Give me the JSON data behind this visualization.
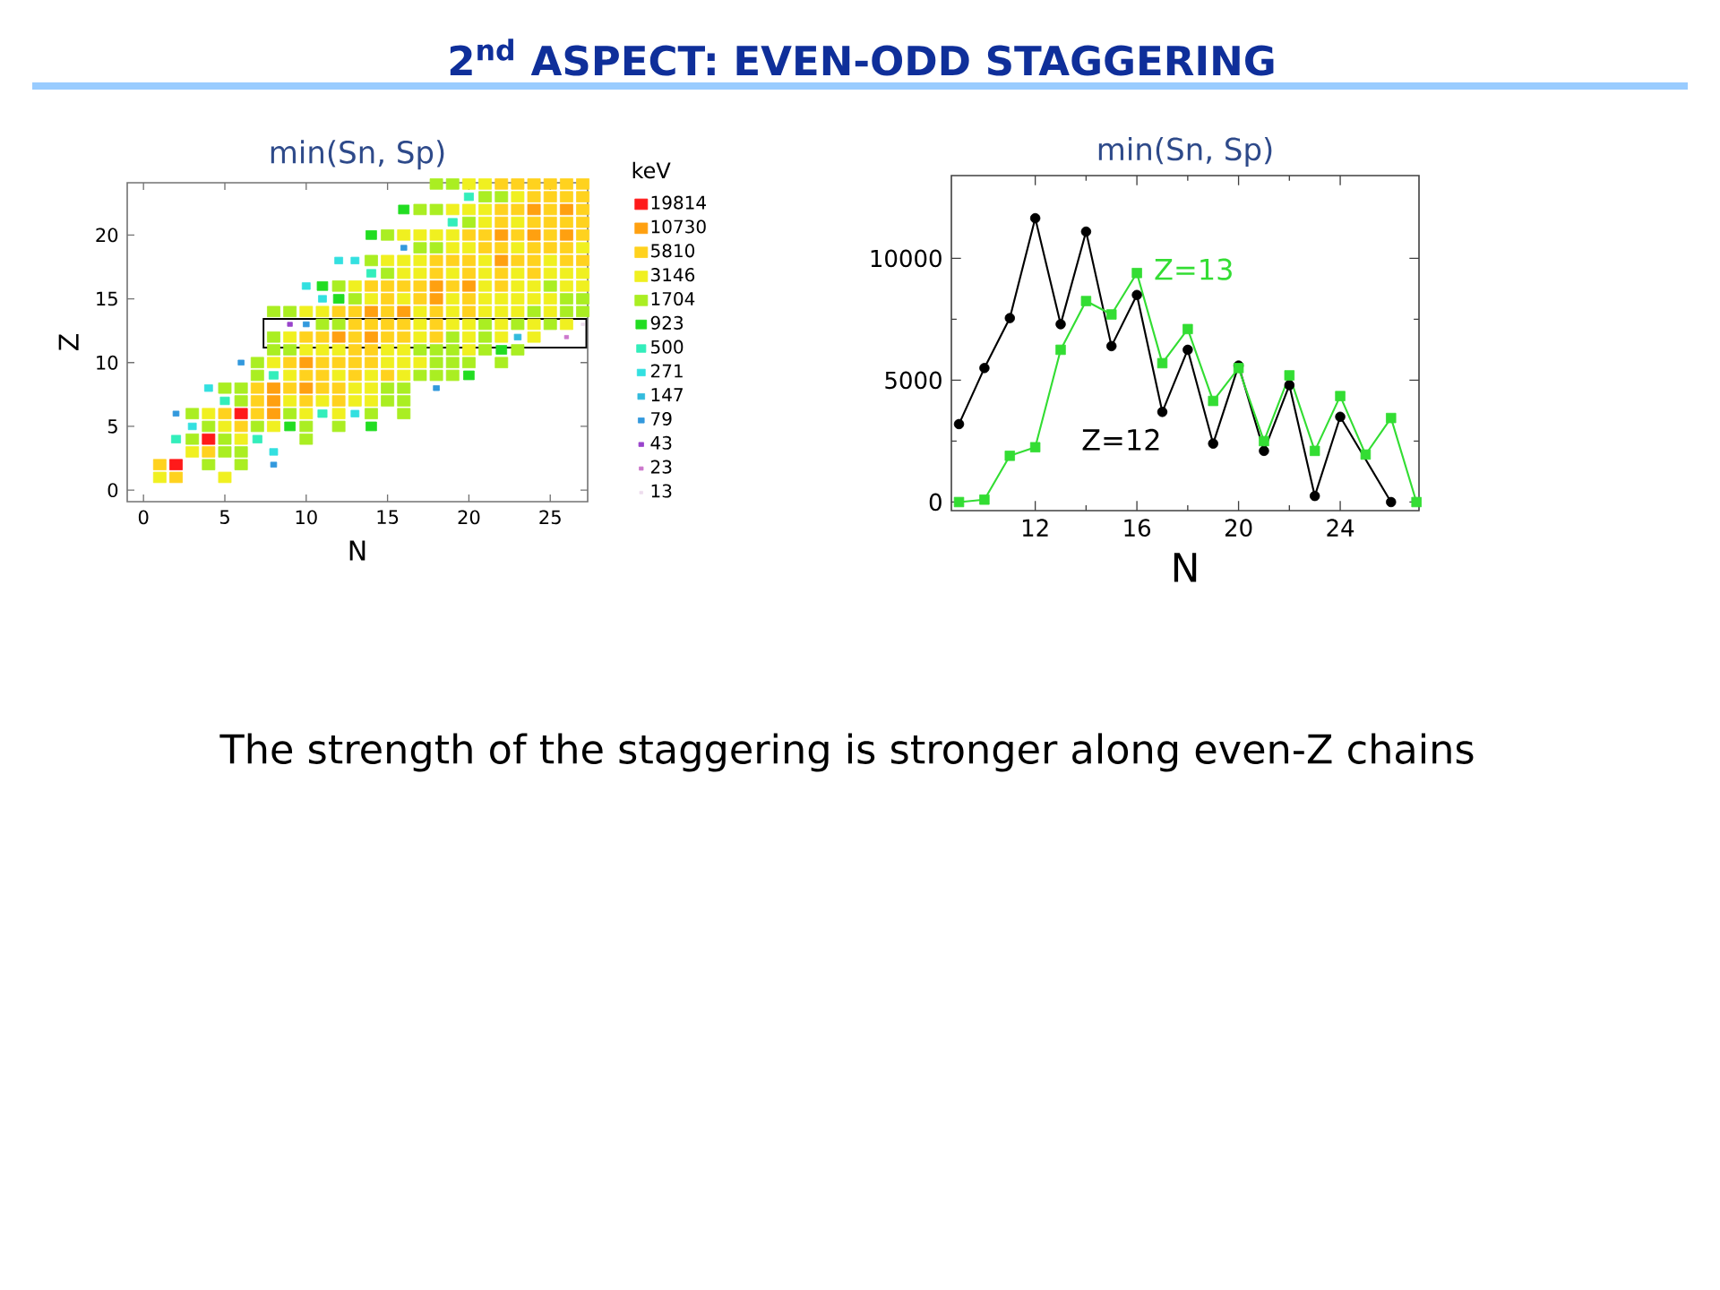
{
  "chart_data": [
    {
      "type": "other",
      "title": "2$^{nd}$ ASPECT: EVEN-ODD STAGGERING",
      "annotations": [
        "The strength of the staggering is stronger along even-Z chains"
      ]
    },
    {
      "type": "scatter",
      "title": "min(Sn, Sp)",
      "xlabel": "N",
      "ylabel": "Z",
      "legend_title": "keV",
      "legend": "right",
      "marker": "square",
      "xlim": [
        -1,
        27.3
      ],
      "xticks": [
        0,
        5,
        10,
        15,
        20,
        25
      ],
      "ylim": [
        -0.9,
        24.1
      ],
      "yticks": [
        0,
        5,
        10,
        15,
        20
      ],
      "series": [
        {
          "name": "19814",
          "color": "#ff1a1a",
          "x": [
            6,
            4,
            2
          ],
          "values": [
            6,
            4,
            2
          ]
        },
        {
          "name": "10730",
          "color": "#ffa010",
          "x": [
            24,
            26,
            22,
            24,
            26,
            22,
            18,
            20,
            18,
            14,
            16,
            12,
            14,
            10,
            8,
            10,
            8,
            8
          ],
          "values": [
            22,
            22,
            20,
            20,
            20,
            18,
            16,
            16,
            15,
            14,
            14,
            12,
            12,
            10,
            8,
            8,
            7,
            6
          ]
        },
        {
          "name": "5810",
          "color": "#ffd21e",
          "x": [
            22,
            23,
            24,
            25,
            26,
            27,
            24,
            25,
            26,
            27,
            22,
            23,
            25,
            27,
            22,
            24,
            25,
            26,
            27,
            20,
            21,
            23,
            25,
            27,
            21,
            22,
            24,
            25,
            26,
            18,
            19,
            20,
            23,
            24,
            26,
            27,
            18,
            20,
            22,
            24,
            14,
            15,
            16,
            17,
            19,
            22,
            15,
            17,
            20,
            12,
            13,
            15,
            18,
            20,
            13,
            14,
            15,
            16,
            18,
            10,
            11,
            13,
            15,
            16,
            18,
            13,
            14,
            9,
            11,
            12,
            13,
            14,
            10,
            11,
            13,
            15,
            7,
            9,
            11,
            12,
            7,
            10,
            12,
            5,
            7,
            6,
            4,
            1,
            2
          ],
          "values": [
            24,
            24,
            24,
            24,
            24,
            24,
            23,
            23,
            23,
            23,
            22,
            22,
            22,
            22,
            21,
            21,
            21,
            21,
            21,
            20,
            20,
            20,
            20,
            20,
            19,
            19,
            19,
            19,
            19,
            18,
            18,
            18,
            18,
            18,
            18,
            18,
            17,
            17,
            17,
            17,
            16,
            16,
            16,
            16,
            16,
            16,
            15,
            15,
            15,
            14,
            14,
            14,
            14,
            14,
            13,
            13,
            13,
            13,
            13,
            12,
            12,
            12,
            12,
            12,
            12,
            11,
            11,
            10,
            10,
            10,
            10,
            10,
            9,
            9,
            9,
            9,
            8,
            8,
            8,
            8,
            7,
            7,
            7,
            6,
            6,
            5,
            3,
            2,
            1
          ]
        },
        {
          "name": "3146",
          "color": "#f0f020",
          "x": [
            20,
            21,
            23,
            19,
            20,
            21,
            21,
            23,
            16,
            17,
            18,
            19,
            19,
            20,
            23,
            27,
            15,
            16,
            17,
            21,
            25,
            16,
            17,
            19,
            21,
            23,
            25,
            26,
            27,
            13,
            21,
            23,
            24,
            26,
            27,
            14,
            16,
            19,
            21,
            22,
            23,
            24,
            25,
            10,
            11,
            17,
            19,
            21,
            22,
            23,
            25,
            17,
            19,
            20,
            22,
            24,
            26,
            9,
            17,
            20,
            22,
            24,
            10,
            11,
            12,
            15,
            16,
            20,
            8,
            15,
            16,
            17,
            9,
            12,
            14,
            16,
            13,
            14,
            9,
            11,
            13,
            14,
            4,
            10,
            12,
            5,
            8,
            6,
            3,
            1,
            5
          ],
          "values": [
            24,
            24,
            23,
            22,
            22,
            22,
            21,
            21,
            20,
            20,
            20,
            20,
            19,
            19,
            19,
            19,
            18,
            18,
            18,
            18,
            18,
            17,
            17,
            17,
            17,
            17,
            17,
            17,
            17,
            16,
            16,
            16,
            16,
            16,
            16,
            15,
            15,
            15,
            15,
            15,
            15,
            15,
            15,
            14,
            14,
            14,
            14,
            14,
            14,
            14,
            14,
            13,
            13,
            13,
            13,
            13,
            13,
            12,
            12,
            12,
            12,
            12,
            11,
            11,
            11,
            11,
            11,
            11,
            10,
            10,
            10,
            10,
            9,
            9,
            9,
            9,
            8,
            8,
            7,
            7,
            7,
            7,
            6,
            6,
            6,
            5,
            5,
            4,
            3,
            1,
            1
          ]
        },
        {
          "name": "1704",
          "color": "#aaee22",
          "x": [
            18,
            19,
            21,
            22,
            17,
            18,
            20,
            15,
            17,
            18,
            14,
            15,
            12,
            25,
            13,
            26,
            27,
            8,
            9,
            24,
            26,
            27,
            11,
            12,
            21,
            23,
            25,
            8,
            19,
            21,
            8,
            9,
            17,
            18,
            19,
            21,
            23,
            7,
            18,
            19,
            20,
            22,
            7,
            17,
            18,
            19,
            5,
            6,
            15,
            16,
            6,
            15,
            16,
            3,
            9,
            14,
            16,
            4,
            7,
            10,
            12,
            3,
            5,
            10,
            5,
            6,
            4,
            6
          ],
          "values": [
            24,
            24,
            23,
            23,
            22,
            22,
            21,
            20,
            19,
            19,
            18,
            17,
            16,
            16,
            15,
            15,
            15,
            14,
            14,
            14,
            14,
            14,
            13,
            13,
            13,
            13,
            13,
            12,
            12,
            12,
            11,
            11,
            11,
            11,
            11,
            11,
            11,
            10,
            10,
            10,
            10,
            10,
            9,
            9,
            9,
            9,
            8,
            8,
            8,
            8,
            7,
            7,
            7,
            6,
            6,
            6,
            6,
            5,
            5,
            5,
            5,
            4,
            4,
            4,
            3,
            3,
            2,
            2
          ]
        },
        {
          "name": "923",
          "color": "#22dd22",
          "x": [
            16,
            14,
            11,
            12,
            22,
            20,
            9,
            14
          ],
          "values": [
            22,
            20,
            16,
            15,
            11,
            9,
            5,
            5
          ]
        },
        {
          "name": "500",
          "color": "#33eebb",
          "x": [
            20,
            19,
            14,
            8,
            5,
            11,
            2,
            7
          ],
          "values": [
            23,
            21,
            17,
            9,
            7,
            6,
            4,
            4
          ]
        },
        {
          "name": "271",
          "color": "#33e0e0",
          "x": [
            12,
            13,
            10,
            11,
            4,
            13,
            3,
            8
          ],
          "values": [
            18,
            18,
            16,
            15,
            8,
            6,
            5,
            3
          ]
        },
        {
          "name": "147",
          "color": "#33bbdd",
          "x": [
            23
          ],
          "values": [
            12
          ]
        },
        {
          "name": "79",
          "color": "#3399dd",
          "x": [
            16,
            10,
            6,
            18,
            2,
            8
          ],
          "values": [
            19,
            13,
            10,
            8,
            6,
            2
          ]
        },
        {
          "name": "43",
          "color": "#9944cc",
          "x": [
            9
          ],
          "values": [
            13
          ]
        },
        {
          "name": "23",
          "color": "#cc77cc",
          "x": [
            26
          ],
          "values": [
            12
          ]
        },
        {
          "name": "13",
          "color": "#eeddee",
          "x": [
            27
          ],
          "values": [
            13
          ]
        }
      ]
    },
    {
      "type": "line",
      "title": "min(Sn, Sp)",
      "xlabel": "N",
      "xlim": [
        8.7,
        27.1
      ],
      "xticks": [
        12,
        16,
        20,
        24
      ],
      "ylim": [
        -350,
        13400
      ],
      "yticks": [
        0,
        5000,
        10000
      ],
      "series": [
        {
          "name": "Z=12",
          "color": "#000000",
          "marker": "circle",
          "x": [
            9,
            10,
            11,
            12,
            13,
            14,
            15,
            16,
            17,
            18,
            19,
            20,
            21,
            22,
            23,
            24,
            26
          ],
          "values": [
            3200,
            5500,
            7550,
            11650,
            7300,
            11100,
            6400,
            8500,
            3700,
            6250,
            2400,
            5600,
            2100,
            4800,
            250,
            3500,
            0
          ]
        },
        {
          "name": "Z=13",
          "color": "#33dd33",
          "marker": "square",
          "x": [
            9,
            10,
            11,
            12,
            13,
            14,
            15,
            16,
            17,
            18,
            19,
            20,
            21,
            22,
            23,
            24,
            25,
            26,
            27
          ],
          "values": [
            0,
            100,
            1900,
            2250,
            6250,
            8250,
            7700,
            9400,
            5700,
            7100,
            4150,
            5500,
            2500,
            5200,
            2100,
            4350,
            1950,
            3450,
            0
          ]
        }
      ]
    }
  ]
}
